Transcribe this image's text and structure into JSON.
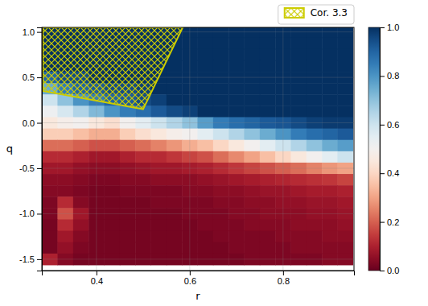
{
  "chart_data": {
    "type": "heatmap",
    "xlabel": "r",
    "ylabel": "q",
    "x": [
      0.3,
      0.333,
      0.367,
      0.4,
      0.433,
      0.467,
      0.5,
      0.533,
      0.567,
      0.6,
      0.633,
      0.667,
      0.7,
      0.733,
      0.767,
      0.8,
      0.833,
      0.867,
      0.9,
      0.933
    ],
    "y": [
      1.0,
      0.875,
      0.75,
      0.625,
      0.5,
      0.375,
      0.25,
      0.125,
      0.0,
      -0.125,
      -0.25,
      -0.375,
      -0.5,
      -0.625,
      -0.75,
      -0.875,
      -1.0,
      -1.125,
      -1.25,
      -1.375,
      -1.5
    ],
    "values": [
      [
        1.0,
        1.0,
        1.0,
        1.0,
        1.0,
        1.0,
        1.0,
        1.0,
        1.0,
        1.0,
        1.0,
        1.0,
        1.0,
        1.0,
        1.0,
        1.0,
        1.0,
        1.0,
        1.0,
        1.0
      ],
      [
        1.0,
        1.0,
        1.0,
        1.0,
        1.0,
        1.0,
        1.0,
        1.0,
        1.0,
        1.0,
        1.0,
        1.0,
        1.0,
        1.0,
        1.0,
        1.0,
        1.0,
        1.0,
        1.0,
        1.0
      ],
      [
        1.0,
        1.0,
        1.0,
        1.0,
        1.0,
        1.0,
        1.0,
        1.0,
        1.0,
        1.0,
        1.0,
        1.0,
        1.0,
        1.0,
        1.0,
        1.0,
        1.0,
        1.0,
        1.0,
        1.0
      ],
      [
        1.0,
        1.0,
        1.0,
        1.0,
        1.0,
        1.0,
        1.0,
        1.0,
        1.0,
        1.0,
        1.0,
        1.0,
        1.0,
        1.0,
        1.0,
        1.0,
        1.0,
        1.0,
        1.0,
        1.0
      ],
      [
        0.9,
        0.95,
        0.95,
        1.0,
        1.0,
        1.0,
        1.0,
        1.0,
        1.0,
        1.0,
        1.0,
        1.0,
        1.0,
        1.0,
        1.0,
        1.0,
        1.0,
        1.0,
        1.0,
        1.0
      ],
      [
        0.75,
        0.85,
        0.9,
        0.92,
        0.95,
        0.95,
        0.97,
        1.0,
        1.0,
        1.0,
        1.0,
        1.0,
        1.0,
        1.0,
        1.0,
        1.0,
        1.0,
        1.0,
        1.0,
        1.0
      ],
      [
        0.6,
        0.7,
        0.8,
        0.85,
        0.9,
        0.92,
        0.95,
        0.97,
        1.0,
        1.0,
        1.0,
        1.0,
        1.0,
        1.0,
        1.0,
        1.0,
        1.0,
        1.0,
        1.0,
        1.0
      ],
      [
        0.52,
        0.58,
        0.65,
        0.72,
        0.8,
        0.85,
        0.88,
        0.92,
        0.95,
        0.97,
        1.0,
        1.0,
        1.0,
        1.0,
        1.0,
        1.0,
        1.0,
        1.0,
        1.0,
        1.0
      ],
      [
        0.45,
        0.48,
        0.5,
        0.45,
        0.42,
        0.5,
        0.55,
        0.6,
        0.65,
        0.7,
        0.78,
        0.85,
        0.88,
        0.9,
        0.92,
        0.93,
        0.95,
        0.97,
        0.98,
        0.98
      ],
      [
        0.38,
        0.38,
        0.35,
        0.32,
        0.32,
        0.38,
        0.42,
        0.45,
        0.48,
        0.5,
        0.55,
        0.6,
        0.65,
        0.7,
        0.75,
        0.8,
        0.85,
        0.88,
        0.9,
        0.92
      ],
      [
        0.22,
        0.22,
        0.2,
        0.18,
        0.18,
        0.2,
        0.22,
        0.25,
        0.28,
        0.32,
        0.35,
        0.4,
        0.45,
        0.5,
        0.55,
        0.6,
        0.65,
        0.7,
        0.75,
        0.78
      ],
      [
        0.12,
        0.12,
        0.1,
        0.08,
        0.08,
        0.1,
        0.12,
        0.12,
        0.14,
        0.16,
        0.18,
        0.22,
        0.26,
        0.3,
        0.35,
        0.4,
        0.45,
        0.5,
        0.55,
        0.6
      ],
      [
        0.08,
        0.08,
        0.06,
        0.05,
        0.05,
        0.06,
        0.07,
        0.08,
        0.08,
        0.09,
        0.1,
        0.12,
        0.14,
        0.16,
        0.18,
        0.2,
        0.22,
        0.25,
        0.28,
        0.3
      ],
      [
        0.05,
        0.05,
        0.04,
        0.03,
        0.03,
        0.04,
        0.04,
        0.05,
        0.05,
        0.05,
        0.06,
        0.07,
        0.08,
        0.09,
        0.1,
        0.11,
        0.12,
        0.13,
        0.14,
        0.16
      ],
      [
        0.04,
        0.04,
        0.03,
        0.02,
        0.02,
        0.03,
        0.03,
        0.03,
        0.03,
        0.04,
        0.04,
        0.05,
        0.05,
        0.06,
        0.07,
        0.07,
        0.08,
        0.09,
        0.09,
        0.1
      ],
      [
        0.03,
        0.12,
        0.04,
        0.02,
        0.02,
        0.02,
        0.02,
        0.03,
        0.03,
        0.03,
        0.03,
        0.04,
        0.04,
        0.05,
        0.05,
        0.06,
        0.06,
        0.07,
        0.07,
        0.08
      ],
      [
        0.03,
        0.18,
        0.08,
        0.02,
        0.02,
        0.02,
        0.02,
        0.02,
        0.02,
        0.03,
        0.03,
        0.03,
        0.04,
        0.04,
        0.05,
        0.05,
        0.05,
        0.06,
        0.06,
        0.07
      ],
      [
        0.02,
        0.12,
        0.06,
        0.02,
        0.02,
        0.02,
        0.02,
        0.02,
        0.02,
        0.02,
        0.03,
        0.03,
        0.03,
        0.04,
        0.04,
        0.04,
        0.05,
        0.05,
        0.05,
        0.06
      ],
      [
        0.02,
        0.08,
        0.04,
        0.02,
        0.02,
        0.02,
        0.02,
        0.02,
        0.02,
        0.02,
        0.02,
        0.03,
        0.03,
        0.03,
        0.03,
        0.04,
        0.04,
        0.04,
        0.05,
        0.05
      ],
      [
        0.02,
        0.06,
        0.03,
        0.02,
        0.02,
        0.02,
        0.02,
        0.02,
        0.02,
        0.02,
        0.02,
        0.02,
        0.03,
        0.03,
        0.03,
        0.03,
        0.04,
        0.04,
        0.04,
        0.04
      ],
      [
        0.1,
        0.04,
        0.02,
        0.02,
        0.02,
        0.02,
        0.02,
        0.02,
        0.02,
        0.02,
        0.02,
        0.02,
        0.02,
        0.03,
        0.03,
        0.03,
        0.03,
        0.03,
        0.04,
        0.04
      ]
    ],
    "xlim": [
      0.283,
      0.952
    ],
    "ylim": [
      -1.625,
      1.05
    ],
    "xticks": [
      0.4,
      0.6,
      0.8
    ],
    "yticks": [
      {
        "value": 1,
        "label": "1.0"
      },
      0.5,
      {
        "value": 0,
        "label": "0.0"
      },
      -0.5,
      {
        "value": -1,
        "label": "-1.0"
      },
      -1.5
    ],
    "colorbar_lim": [
      0,
      1
    ],
    "colorbar_ticks": [
      {
        "value": 0,
        "label": "0.0"
      },
      0.2,
      0.4,
      0.6,
      0.8,
      {
        "value": 1,
        "label": "1.0"
      }
    ],
    "grid": true,
    "legend": "upper right",
    "series": [
      {
        "name": "Cor. 3.3",
        "type": "polygon",
        "color": "#cccc00",
        "x": [
          0.285,
          0.285,
          0.585,
          0.5
        ],
        "y": [
          0.35,
          1.05,
          1.05,
          0.15
        ]
      }
    ]
  }
}
